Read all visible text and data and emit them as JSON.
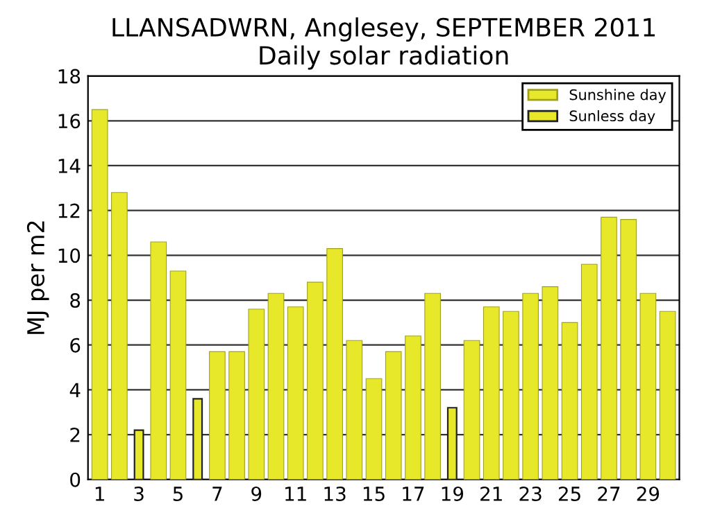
{
  "chart_data": {
    "type": "bar",
    "title": "LLANSADWRN, Anglesey, SEPTEMBER 2011\nDaily solar radiation",
    "ylabel": "MJ per m2",
    "categories": [
      "1",
      null,
      "3",
      null,
      "5",
      null,
      "7",
      null,
      "9",
      null,
      "11",
      null,
      "13",
      null,
      "15",
      null,
      "17",
      null,
      "19",
      null,
      "21",
      null,
      "23",
      null,
      "25",
      null,
      "27",
      null,
      "29",
      null
    ],
    "series": [
      {
        "name": "Sunshine day",
        "color": "#e8e82a",
        "values": [
          16.5,
          12.8,
          null,
          10.6,
          9.3,
          null,
          5.7,
          5.7,
          7.6,
          8.3,
          7.7,
          8.8,
          10.3,
          6.2,
          4.5,
          5.7,
          6.4,
          8.3,
          null,
          6.2,
          7.7,
          7.5,
          8.3,
          8.6,
          7.0,
          9.6,
          11.7,
          11.6,
          8.3,
          7.5
        ]
      },
      {
        "name": "Sunless day",
        "color": "#e8e82a",
        "values": [
          null,
          null,
          2.2,
          null,
          null,
          3.6,
          null,
          null,
          null,
          null,
          null,
          null,
          null,
          null,
          null,
          null,
          null,
          null,
          3.2,
          null,
          null,
          null,
          null,
          null,
          null,
          null,
          null,
          null,
          null,
          null
        ]
      }
    ],
    "ylim": [
      0,
      18
    ],
    "yticks": [
      0,
      2,
      4,
      6,
      8,
      10,
      12,
      14,
      16,
      18
    ],
    "grid": "y",
    "legend": "top right"
  }
}
